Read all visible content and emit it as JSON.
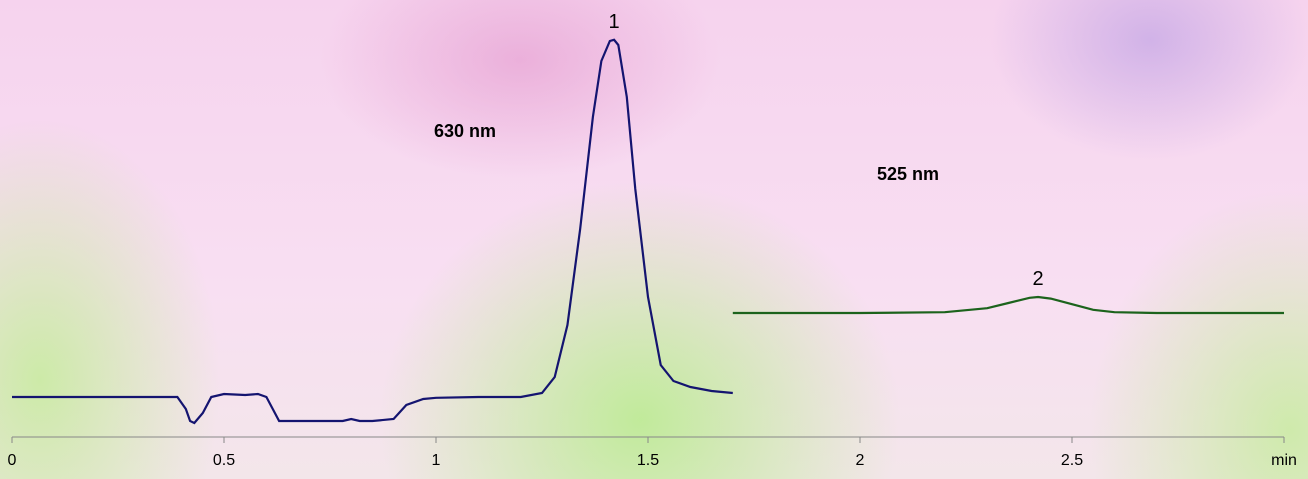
{
  "chart_data": {
    "type": "line",
    "xlim": [
      0,
      3
    ],
    "xticks": [
      0,
      0.5,
      1,
      1.5,
      2,
      2.5,
      {
        "value": 3,
        "label": "min"
      }
    ],
    "ylim": [
      0,
      100
    ],
    "peak_labels": [
      "1",
      "2"
    ],
    "series": [
      {
        "name": "630 nm",
        "color": "#141470",
        "x": [
          0,
          0.39,
          0.41,
          0.42,
          0.43,
          0.45,
          0.47,
          0.5,
          0.55,
          0.58,
          0.6,
          0.62,
          0.63,
          0.7,
          0.78,
          0.8,
          0.82,
          0.85,
          0.9,
          0.93,
          0.97,
          1.0,
          1.1,
          1.2,
          1.25,
          1.28,
          1.31,
          1.34,
          1.37,
          1.39,
          1.41,
          1.42,
          1.43,
          1.45,
          1.47,
          1.5,
          1.53,
          1.56,
          1.6,
          1.65,
          1.7
        ],
        "values": [
          10,
          10,
          7,
          4,
          3.5,
          6,
          10,
          10.75,
          10.5,
          10.75,
          10,
          6,
          4,
          4,
          4,
          4.5,
          4,
          4,
          4.5,
          8,
          9.5,
          9.8,
          10,
          10,
          11,
          15,
          28,
          52,
          80,
          94,
          99,
          99.3,
          98,
          85,
          62,
          35,
          18,
          14,
          12.5,
          11.5,
          11
        ]
      },
      {
        "name": "525 nm",
        "color": "#1c631c",
        "x": [
          1.7,
          2.0,
          2.2,
          2.3,
          2.35,
          2.4,
          2.42,
          2.45,
          2.5,
          2.55,
          2.6,
          2.7,
          3.0
        ],
        "values": [
          31,
          31,
          31.2,
          32.2,
          33.5,
          34.8,
          35,
          34.6,
          33.2,
          31.8,
          31.2,
          31,
          31
        ]
      }
    ]
  }
}
